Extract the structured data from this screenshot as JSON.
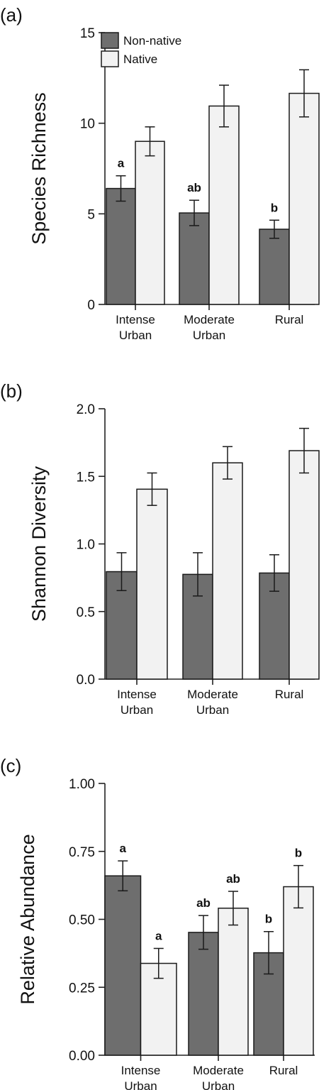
{
  "chart_data": [
    {
      "panel": "(a)",
      "type": "bar",
      "ylabel": "Species Richness",
      "ylim": [
        0,
        15
      ],
      "yticks": [
        0,
        5,
        10,
        15
      ],
      "categories": [
        [
          "Intense",
          "Urban"
        ],
        [
          "Moderate",
          "Urban"
        ],
        [
          "Rural"
        ]
      ],
      "series": [
        {
          "name": "Non-native",
          "color": "#6e6e6e",
          "values": [
            6.4,
            5.05,
            4.15
          ],
          "err": [
            0.7,
            0.7,
            0.5
          ],
          "labels": [
            "a",
            "ab",
            "b"
          ]
        },
        {
          "name": "Native",
          "color": "#f2f2f2",
          "values": [
            9.0,
            10.95,
            11.65
          ],
          "err": [
            0.8,
            1.15,
            1.3
          ],
          "labels": [
            "",
            "",
            ""
          ]
        }
      ],
      "legend": "top-left",
      "grid": false
    },
    {
      "panel": "(b)",
      "type": "bar",
      "ylabel": "Shannon Diversity",
      "ylim": [
        0,
        2
      ],
      "yticks": [
        "0.0",
        "0.5",
        "1.0",
        "1.5",
        "2.0"
      ],
      "categories": [
        [
          "Intense",
          "Urban"
        ],
        [
          "Moderate",
          "Urban"
        ],
        [
          "Rural"
        ]
      ],
      "series": [
        {
          "name": "Non-native",
          "color": "#6e6e6e",
          "values": [
            0.795,
            0.775,
            0.785
          ],
          "err": [
            0.14,
            0.16,
            0.135
          ],
          "labels": [
            "",
            "",
            ""
          ]
        },
        {
          "name": "Native",
          "color": "#f2f2f2",
          "values": [
            1.405,
            1.6,
            1.69
          ],
          "err": [
            0.12,
            0.12,
            0.165
          ],
          "labels": [
            "",
            "",
            ""
          ]
        }
      ],
      "grid": false
    },
    {
      "panel": "(c)",
      "type": "bar",
      "ylabel": "Relative Abundance",
      "ylim": [
        0,
        1
      ],
      "yticks": [
        "0.00",
        "0.25",
        "0.50",
        "0.75",
        "1.00"
      ],
      "categories": [
        [
          "Intense",
          "Urban"
        ],
        [
          "Moderate",
          "Urban"
        ],
        [
          "Rural"
        ]
      ],
      "series": [
        {
          "name": "Non-native",
          "color": "#6e6e6e",
          "values": [
            0.66,
            0.452,
            0.377
          ],
          "err": [
            0.055,
            0.062,
            0.078
          ],
          "labels": [
            "a",
            "ab",
            "b"
          ]
        },
        {
          "name": "Native",
          "color": "#f2f2f2",
          "values": [
            0.338,
            0.541,
            0.62
          ],
          "err": [
            0.055,
            0.062,
            0.078
          ],
          "labels": [
            "a",
            "ab",
            "b"
          ]
        }
      ],
      "grid": false
    }
  ]
}
